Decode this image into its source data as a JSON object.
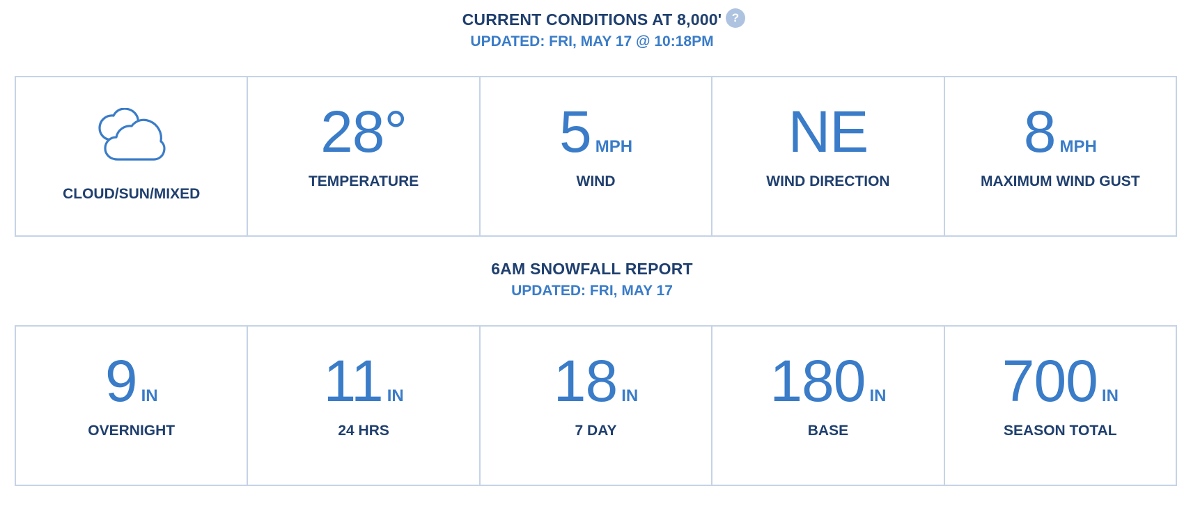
{
  "current": {
    "title": "CURRENT CONDITIONS AT 8,000'",
    "updated": "UPDATED: FRI, MAY 17 @ 10:18PM",
    "help_glyph": "?",
    "cells": [
      {
        "icon": "cloud-sun-icon",
        "label": "CLOUD/SUN/MIXED"
      },
      {
        "value": "28°",
        "unit": "",
        "label": "TEMPERATURE"
      },
      {
        "value": "5",
        "unit": "MPH",
        "label": "WIND"
      },
      {
        "value": "NE",
        "unit": "",
        "label": "WIND DIRECTION"
      },
      {
        "value": "8",
        "unit": "MPH",
        "label": "MAXIMUM WIND GUST"
      }
    ]
  },
  "snowfall": {
    "title": "6AM SNOWFALL REPORT",
    "updated": "UPDATED: FRI, MAY 17",
    "cells": [
      {
        "value": "9",
        "unit": "IN",
        "label": "OVERNIGHT"
      },
      {
        "value": "11",
        "unit": "IN",
        "label": "24 HRS"
      },
      {
        "value": "18",
        "unit": "IN",
        "label": "7 DAY"
      },
      {
        "value": "180",
        "unit": "IN",
        "label": "BASE"
      },
      {
        "value": "700",
        "unit": "IN",
        "label": "SEASON TOTAL"
      }
    ]
  },
  "colors": {
    "accent_blue": "#3a7cc8",
    "navy": "#1f3f6e",
    "border": "#c5d3e6",
    "help_bg": "#aec3e0"
  }
}
